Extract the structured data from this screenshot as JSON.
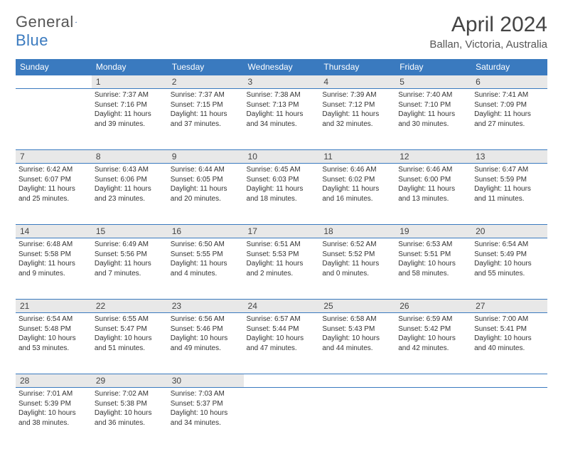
{
  "logo": {
    "text1": "General",
    "text2": "Blue"
  },
  "title": "April 2024",
  "location": "Ballan, Victoria, Australia",
  "day_headers": [
    "Sunday",
    "Monday",
    "Tuesday",
    "Wednesday",
    "Thursday",
    "Friday",
    "Saturday"
  ],
  "header_bg": "#3a7abf",
  "header_fg": "#ffffff",
  "daynum_bg": "#e8e8e8",
  "border_color": "#3a7abf",
  "weeks": [
    {
      "nums": [
        "",
        "1",
        "2",
        "3",
        "4",
        "5",
        "6"
      ],
      "cells": [
        {
          "blank": true
        },
        {
          "sunrise": "Sunrise: 7:37 AM",
          "sunset": "Sunset: 7:16 PM",
          "day1": "Daylight: 11 hours",
          "day2": "and 39 minutes."
        },
        {
          "sunrise": "Sunrise: 7:37 AM",
          "sunset": "Sunset: 7:15 PM",
          "day1": "Daylight: 11 hours",
          "day2": "and 37 minutes."
        },
        {
          "sunrise": "Sunrise: 7:38 AM",
          "sunset": "Sunset: 7:13 PM",
          "day1": "Daylight: 11 hours",
          "day2": "and 34 minutes."
        },
        {
          "sunrise": "Sunrise: 7:39 AM",
          "sunset": "Sunset: 7:12 PM",
          "day1": "Daylight: 11 hours",
          "day2": "and 32 minutes."
        },
        {
          "sunrise": "Sunrise: 7:40 AM",
          "sunset": "Sunset: 7:10 PM",
          "day1": "Daylight: 11 hours",
          "day2": "and 30 minutes."
        },
        {
          "sunrise": "Sunrise: 7:41 AM",
          "sunset": "Sunset: 7:09 PM",
          "day1": "Daylight: 11 hours",
          "day2": "and 27 minutes."
        }
      ]
    },
    {
      "nums": [
        "7",
        "8",
        "9",
        "10",
        "11",
        "12",
        "13"
      ],
      "cells": [
        {
          "sunrise": "Sunrise: 6:42 AM",
          "sunset": "Sunset: 6:07 PM",
          "day1": "Daylight: 11 hours",
          "day2": "and 25 minutes."
        },
        {
          "sunrise": "Sunrise: 6:43 AM",
          "sunset": "Sunset: 6:06 PM",
          "day1": "Daylight: 11 hours",
          "day2": "and 23 minutes."
        },
        {
          "sunrise": "Sunrise: 6:44 AM",
          "sunset": "Sunset: 6:05 PM",
          "day1": "Daylight: 11 hours",
          "day2": "and 20 minutes."
        },
        {
          "sunrise": "Sunrise: 6:45 AM",
          "sunset": "Sunset: 6:03 PM",
          "day1": "Daylight: 11 hours",
          "day2": "and 18 minutes."
        },
        {
          "sunrise": "Sunrise: 6:46 AM",
          "sunset": "Sunset: 6:02 PM",
          "day1": "Daylight: 11 hours",
          "day2": "and 16 minutes."
        },
        {
          "sunrise": "Sunrise: 6:46 AM",
          "sunset": "Sunset: 6:00 PM",
          "day1": "Daylight: 11 hours",
          "day2": "and 13 minutes."
        },
        {
          "sunrise": "Sunrise: 6:47 AM",
          "sunset": "Sunset: 5:59 PM",
          "day1": "Daylight: 11 hours",
          "day2": "and 11 minutes."
        }
      ]
    },
    {
      "nums": [
        "14",
        "15",
        "16",
        "17",
        "18",
        "19",
        "20"
      ],
      "cells": [
        {
          "sunrise": "Sunrise: 6:48 AM",
          "sunset": "Sunset: 5:58 PM",
          "day1": "Daylight: 11 hours",
          "day2": "and 9 minutes."
        },
        {
          "sunrise": "Sunrise: 6:49 AM",
          "sunset": "Sunset: 5:56 PM",
          "day1": "Daylight: 11 hours",
          "day2": "and 7 minutes."
        },
        {
          "sunrise": "Sunrise: 6:50 AM",
          "sunset": "Sunset: 5:55 PM",
          "day1": "Daylight: 11 hours",
          "day2": "and 4 minutes."
        },
        {
          "sunrise": "Sunrise: 6:51 AM",
          "sunset": "Sunset: 5:53 PM",
          "day1": "Daylight: 11 hours",
          "day2": "and 2 minutes."
        },
        {
          "sunrise": "Sunrise: 6:52 AM",
          "sunset": "Sunset: 5:52 PM",
          "day1": "Daylight: 11 hours",
          "day2": "and 0 minutes."
        },
        {
          "sunrise": "Sunrise: 6:53 AM",
          "sunset": "Sunset: 5:51 PM",
          "day1": "Daylight: 10 hours",
          "day2": "and 58 minutes."
        },
        {
          "sunrise": "Sunrise: 6:54 AM",
          "sunset": "Sunset: 5:49 PM",
          "day1": "Daylight: 10 hours",
          "day2": "and 55 minutes."
        }
      ]
    },
    {
      "nums": [
        "21",
        "22",
        "23",
        "24",
        "25",
        "26",
        "27"
      ],
      "cells": [
        {
          "sunrise": "Sunrise: 6:54 AM",
          "sunset": "Sunset: 5:48 PM",
          "day1": "Daylight: 10 hours",
          "day2": "and 53 minutes."
        },
        {
          "sunrise": "Sunrise: 6:55 AM",
          "sunset": "Sunset: 5:47 PM",
          "day1": "Daylight: 10 hours",
          "day2": "and 51 minutes."
        },
        {
          "sunrise": "Sunrise: 6:56 AM",
          "sunset": "Sunset: 5:46 PM",
          "day1": "Daylight: 10 hours",
          "day2": "and 49 minutes."
        },
        {
          "sunrise": "Sunrise: 6:57 AM",
          "sunset": "Sunset: 5:44 PM",
          "day1": "Daylight: 10 hours",
          "day2": "and 47 minutes."
        },
        {
          "sunrise": "Sunrise: 6:58 AM",
          "sunset": "Sunset: 5:43 PM",
          "day1": "Daylight: 10 hours",
          "day2": "and 44 minutes."
        },
        {
          "sunrise": "Sunrise: 6:59 AM",
          "sunset": "Sunset: 5:42 PM",
          "day1": "Daylight: 10 hours",
          "day2": "and 42 minutes."
        },
        {
          "sunrise": "Sunrise: 7:00 AM",
          "sunset": "Sunset: 5:41 PM",
          "day1": "Daylight: 10 hours",
          "day2": "and 40 minutes."
        }
      ]
    },
    {
      "nums": [
        "28",
        "29",
        "30",
        "",
        "",
        "",
        ""
      ],
      "cells": [
        {
          "sunrise": "Sunrise: 7:01 AM",
          "sunset": "Sunset: 5:39 PM",
          "day1": "Daylight: 10 hours",
          "day2": "and 38 minutes."
        },
        {
          "sunrise": "Sunrise: 7:02 AM",
          "sunset": "Sunset: 5:38 PM",
          "day1": "Daylight: 10 hours",
          "day2": "and 36 minutes."
        },
        {
          "sunrise": "Sunrise: 7:03 AM",
          "sunset": "Sunset: 5:37 PM",
          "day1": "Daylight: 10 hours",
          "day2": "and 34 minutes."
        },
        {
          "blank": true
        },
        {
          "blank": true
        },
        {
          "blank": true
        },
        {
          "blank": true
        }
      ]
    }
  ]
}
